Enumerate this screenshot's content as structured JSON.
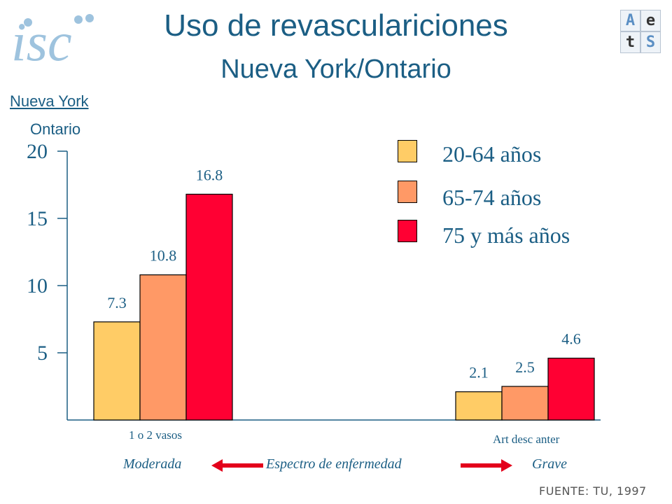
{
  "header": {
    "title": "Uso de revasculariciones",
    "subtitle": "Nueva York/Ontario",
    "logo_left_text": "isc",
    "logo_right_letters": [
      "A",
      "e",
      "t",
      "S"
    ]
  },
  "side_labels": {
    "nueva_york": "Nueva York",
    "ontario": "Ontario"
  },
  "chart_data": {
    "type": "bar",
    "categories": [
      "1 o 2 vasos",
      "Art desc anter"
    ],
    "series": [
      {
        "name": "20-64 años",
        "color": "#ffcc66",
        "values": [
          7.3,
          2.1
        ]
      },
      {
        "name": "65-74 años",
        "color": "#ff9966",
        "values": [
          10.8,
          2.5
        ]
      },
      {
        "name": "75 y más años",
        "color": "#ff0033",
        "values": [
          16.8,
          4.6
        ]
      }
    ],
    "y_ticks": [
      "5",
      "10",
      "15",
      "20"
    ],
    "ylim": [
      0,
      20
    ],
    "legend_position": "top-right",
    "grid": false
  },
  "spectrum": {
    "left": "Moderada",
    "middle": "Espectro de enfermedad",
    "right": "Grave"
  },
  "footer": "FUENTE: TU, 1997"
}
